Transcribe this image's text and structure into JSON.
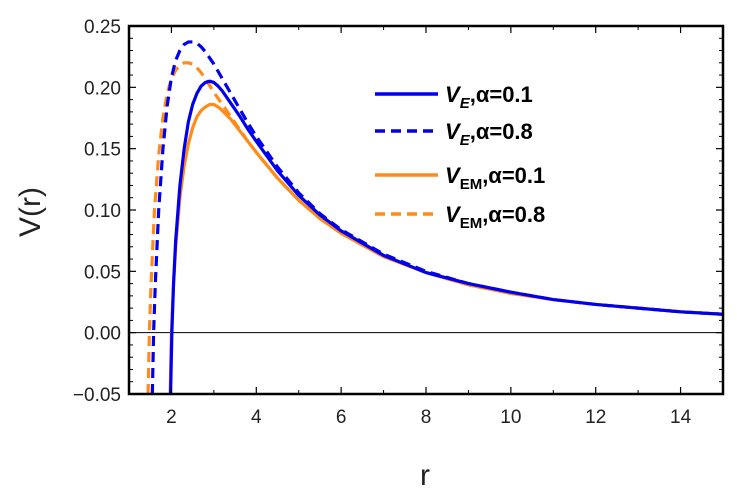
{
  "chart_data": {
    "type": "line",
    "title": "",
    "xlabel": "r",
    "ylabel": "V(r)",
    "xlim": [
      1.0,
      15.0
    ],
    "ylim": [
      -0.05,
      0.25
    ],
    "x_ticks": [
      2,
      4,
      6,
      8,
      10,
      12,
      14
    ],
    "x_tick_labels": [
      "2",
      "4",
      "6",
      "8",
      "10",
      "12",
      "14"
    ],
    "y_ticks": [
      -0.05,
      0.0,
      0.05,
      0.1,
      0.15,
      0.2,
      0.25
    ],
    "y_tick_labels": [
      "−0.05",
      "0.00",
      "0.05",
      "0.10",
      "0.15",
      "0.20",
      "0.25"
    ],
    "reference_line": 0.0,
    "legend_position": "top-right",
    "colors": {
      "blue": "#0000ee",
      "orange": "#ff8c1a"
    },
    "series": [
      {
        "name": "V_E,α=0.1",
        "main": "V",
        "sub": "E",
        "sub_italic": true,
        "param": ",α=0.1",
        "color": "#0000ee",
        "dash": "solid",
        "x": [
          1.98,
          2.01,
          2.05,
          2.1,
          2.2,
          2.3,
          2.4,
          2.5,
          2.6,
          2.7,
          2.8,
          2.9,
          3.0,
          3.1,
          3.2,
          3.4,
          3.6,
          3.8,
          4.0,
          4.5,
          5.0,
          5.5,
          6.0,
          7.0,
          8.0,
          9.0,
          10.0,
          11.0,
          12.0,
          13.0,
          14.0,
          15.0
        ],
        "values": [
          -0.05,
          0.0,
          0.04,
          0.075,
          0.12,
          0.15,
          0.172,
          0.186,
          0.195,
          0.201,
          0.204,
          0.205,
          0.204,
          0.201,
          0.197,
          0.187,
          0.177,
          0.166,
          0.156,
          0.132,
          0.112,
          0.096,
          0.083,
          0.063,
          0.049,
          0.04,
          0.033,
          0.027,
          0.023,
          0.02,
          0.017,
          0.015
        ]
      },
      {
        "name": "V_E,α=0.8",
        "main": "V",
        "sub": "E",
        "sub_italic": true,
        "param": ",α=0.8",
        "color": "#0000ee",
        "dash": "dashed",
        "x": [
          1.55,
          1.58,
          1.62,
          1.7,
          1.8,
          1.9,
          2.0,
          2.1,
          2.2,
          2.3,
          2.4,
          2.5,
          2.6,
          2.7,
          2.8,
          3.0,
          3.2,
          3.4,
          3.6,
          3.8,
          4.0,
          4.5,
          5.0,
          5.5,
          6.0,
          7.0,
          8.0,
          9.0,
          10.0,
          11.0,
          12.0,
          13.0,
          14.0,
          15.0
        ],
        "values": [
          -0.05,
          0.0,
          0.04,
          0.1,
          0.15,
          0.185,
          0.208,
          0.222,
          0.23,
          0.235,
          0.237,
          0.237,
          0.236,
          0.233,
          0.229,
          0.219,
          0.207,
          0.195,
          0.183,
          0.171,
          0.16,
          0.135,
          0.114,
          0.097,
          0.084,
          0.064,
          0.05,
          0.04,
          0.033,
          0.027,
          0.023,
          0.02,
          0.017,
          0.015
        ]
      },
      {
        "name": "V_EM,α=0.1",
        "main": "V",
        "sub": "EM",
        "sub_italic": false,
        "param": ",α=0.1",
        "color": "#ff8c1a",
        "dash": "solid",
        "x": [
          1.97,
          2.0,
          2.05,
          2.1,
          2.2,
          2.3,
          2.4,
          2.5,
          2.6,
          2.7,
          2.8,
          2.9,
          3.0,
          3.1,
          3.2,
          3.4,
          3.6,
          3.8,
          4.0,
          4.5,
          5.0,
          5.5,
          6.0,
          7.0,
          8.0,
          9.0,
          10.0,
          11.0,
          12.0,
          13.0,
          14.0,
          15.0
        ],
        "values": [
          -0.05,
          0.0,
          0.04,
          0.07,
          0.11,
          0.136,
          0.154,
          0.167,
          0.176,
          0.181,
          0.184,
          0.186,
          0.186,
          0.184,
          0.181,
          0.174,
          0.165,
          0.156,
          0.147,
          0.126,
          0.108,
          0.093,
          0.081,
          0.062,
          0.049,
          0.039,
          0.032,
          0.027,
          0.023,
          0.02,
          0.017,
          0.015
        ]
      },
      {
        "name": "V_EM,α=0.8",
        "main": "V",
        "sub": "EM",
        "sub_italic": false,
        "param": ",α=0.8",
        "color": "#ff8c1a",
        "dash": "dashed",
        "x": [
          1.45,
          1.48,
          1.52,
          1.6,
          1.7,
          1.8,
          1.9,
          2.0,
          2.1,
          2.2,
          2.3,
          2.4,
          2.5,
          2.6,
          2.7,
          2.8,
          3.0,
          3.2,
          3.4,
          3.6,
          3.8,
          4.0,
          4.5,
          5.0,
          5.5,
          6.0,
          7.0,
          8.0,
          9.0,
          10.0,
          11.0,
          12.0,
          13.0,
          14.0,
          15.0
        ],
        "values": [
          -0.05,
          0.0,
          0.04,
          0.1,
          0.145,
          0.175,
          0.195,
          0.207,
          0.214,
          0.218,
          0.22,
          0.22,
          0.219,
          0.216,
          0.212,
          0.207,
          0.196,
          0.186,
          0.176,
          0.166,
          0.156,
          0.147,
          0.126,
          0.108,
          0.093,
          0.081,
          0.062,
          0.049,
          0.039,
          0.032,
          0.027,
          0.023,
          0.02,
          0.017,
          0.015
        ]
      }
    ]
  }
}
